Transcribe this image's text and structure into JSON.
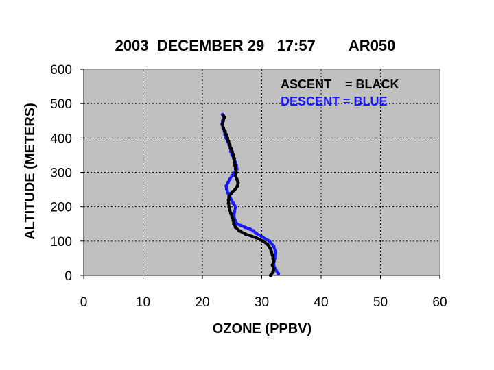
{
  "chart_data": {
    "type": "line",
    "title": "2003  DECEMBER 29   17:57        AR050",
    "xlabel": "OZONE (PPBV)",
    "ylabel": "ALTITUDE (METERS)",
    "xlim": [
      0,
      60
    ],
    "ylim": [
      0,
      600
    ],
    "xticks": [
      "0",
      "10",
      "20",
      "30",
      "40",
      "50",
      "60"
    ],
    "yticks": [
      "0",
      "100",
      "200",
      "300",
      "400",
      "500",
      "600"
    ],
    "grid": true,
    "plot_background": "#c0c0c0",
    "legend_entries": [
      {
        "label": "ASCENT    = BLACK",
        "color": "#000000"
      },
      {
        "label": "DESCENT = BLUE",
        "color": "#1a1aff"
      }
    ],
    "series": [
      {
        "color": "#000000",
        "points": [
          [
            31.5,
            0
          ],
          [
            31.9,
            10
          ],
          [
            32.0,
            20
          ],
          [
            31.8,
            30
          ],
          [
            32.0,
            40
          ],
          [
            31.9,
            50
          ],
          [
            31.8,
            60
          ],
          [
            31.6,
            70
          ],
          [
            31.4,
            80
          ],
          [
            31.0,
            90
          ],
          [
            30.2,
            100
          ],
          [
            29.0,
            110
          ],
          [
            27.3,
            120
          ],
          [
            26.2,
            130
          ],
          [
            25.6,
            140
          ],
          [
            25.3,
            150
          ],
          [
            25.2,
            160
          ],
          [
            25.0,
            170
          ],
          [
            24.8,
            180
          ],
          [
            24.6,
            190
          ],
          [
            24.5,
            200
          ],
          [
            24.4,
            210
          ],
          [
            24.4,
            220
          ],
          [
            24.5,
            230
          ],
          [
            24.9,
            240
          ],
          [
            25.5,
            250
          ],
          [
            25.9,
            260
          ],
          [
            26.0,
            270
          ],
          [
            25.8,
            280
          ],
          [
            25.6,
            290
          ],
          [
            25.7,
            300
          ],
          [
            25.6,
            310
          ],
          [
            25.5,
            320
          ],
          [
            25.4,
            330
          ],
          [
            25.3,
            340
          ],
          [
            25.2,
            350
          ],
          [
            25.0,
            360
          ],
          [
            24.8,
            370
          ],
          [
            24.6,
            380
          ],
          [
            24.4,
            390
          ],
          [
            24.2,
            400
          ],
          [
            24.0,
            410
          ],
          [
            23.8,
            420
          ],
          [
            23.5,
            430
          ],
          [
            23.4,
            440
          ],
          [
            23.5,
            450
          ],
          [
            23.7,
            460
          ],
          [
            23.5,
            465
          ]
        ]
      },
      {
        "color": "#1a1aff",
        "points": [
          [
            32.8,
            5
          ],
          [
            32.4,
            15
          ],
          [
            32.0,
            30
          ],
          [
            32.2,
            50
          ],
          [
            32.3,
            70
          ],
          [
            32.0,
            85
          ],
          [
            31.3,
            100
          ],
          [
            30.0,
            113
          ],
          [
            29.0,
            123
          ],
          [
            28.6,
            130
          ],
          [
            28.0,
            135
          ],
          [
            27.2,
            140
          ],
          [
            26.5,
            145
          ],
          [
            25.8,
            150
          ],
          [
            25.5,
            160
          ],
          [
            25.3,
            175
          ],
          [
            25.4,
            185
          ],
          [
            25.6,
            200
          ],
          [
            25.2,
            210
          ],
          [
            24.9,
            220
          ],
          [
            24.6,
            230
          ],
          [
            24.3,
            240
          ],
          [
            24.1,
            250
          ],
          [
            24.0,
            260
          ],
          [
            24.3,
            270
          ],
          [
            24.6,
            280
          ],
          [
            25.0,
            290
          ],
          [
            25.4,
            300
          ],
          [
            25.8,
            310
          ],
          [
            25.7,
            320
          ],
          [
            25.5,
            330
          ],
          [
            25.4,
            340
          ],
          [
            25.0,
            350
          ],
          [
            24.8,
            360
          ],
          [
            24.7,
            370
          ],
          [
            24.5,
            380
          ],
          [
            24.3,
            390
          ],
          [
            24.0,
            400
          ],
          [
            23.8,
            410
          ],
          [
            23.7,
            420
          ],
          [
            23.5,
            430
          ],
          [
            23.3,
            440
          ],
          [
            23.4,
            450
          ],
          [
            23.7,
            460
          ],
          [
            23.4,
            468
          ]
        ]
      }
    ]
  }
}
